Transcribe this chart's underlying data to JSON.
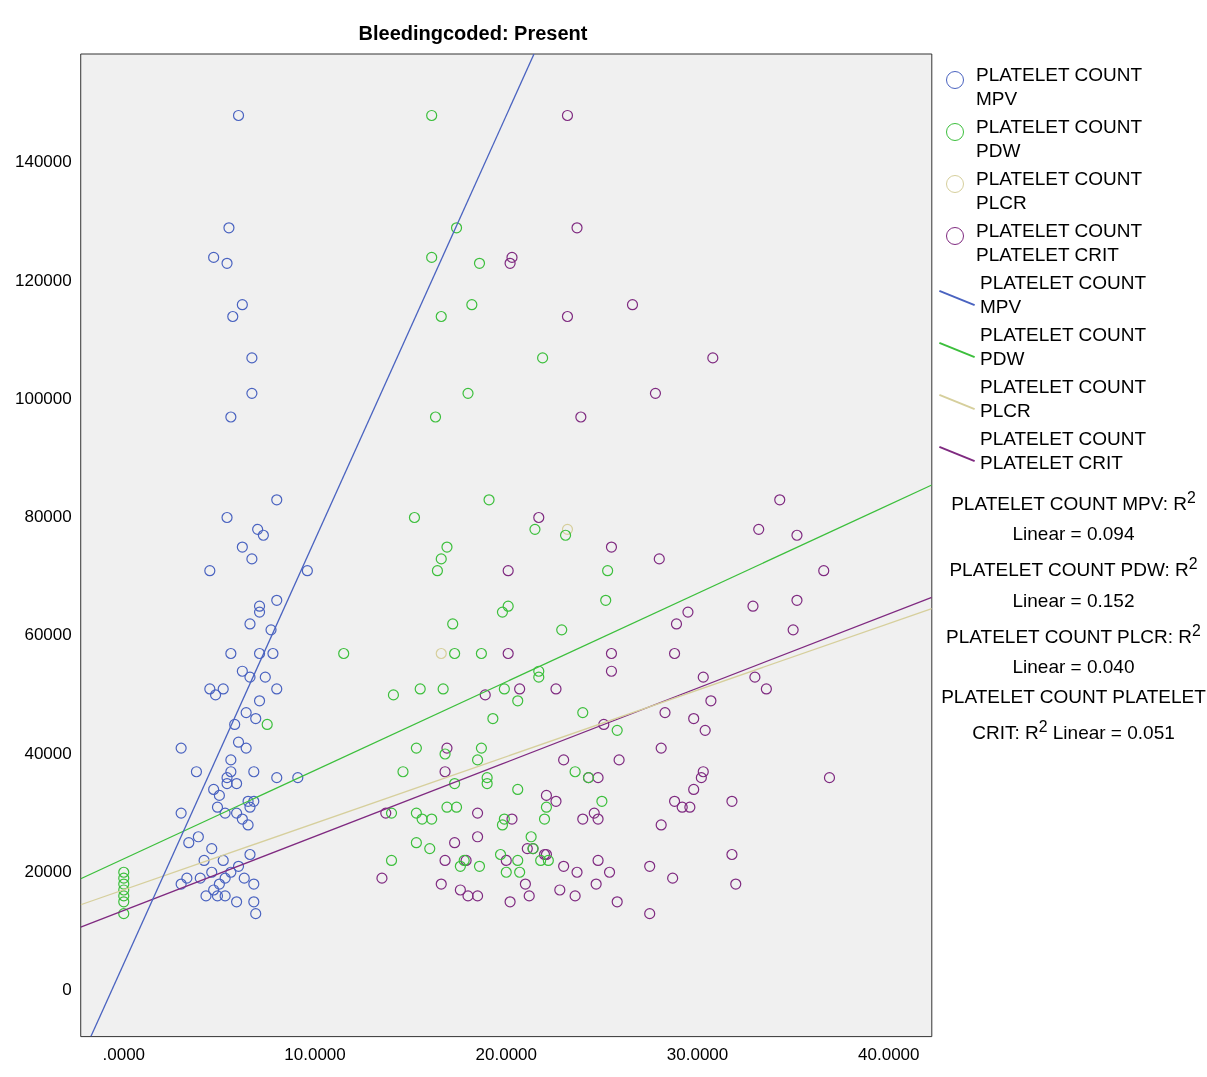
{
  "chart_data": {
    "type": "scatter",
    "title": "Bleedingcoded: Present",
    "xlim": [
      -2.25,
      42.25
    ],
    "xticks": [
      {
        "value": 0,
        "label": ".0000"
      },
      {
        "value": 10,
        "label": "10.0000"
      },
      {
        "value": 20,
        "label": "20.0000"
      },
      {
        "value": 30,
        "label": "30.0000"
      },
      {
        "value": 40,
        "label": "40.0000"
      }
    ],
    "ylim": [
      -7800,
      158400
    ],
    "yticks": [
      0,
      20000,
      40000,
      60000,
      80000,
      100000,
      120000,
      140000
    ],
    "grid": false,
    "legend": "right",
    "marker": "circle",
    "annotations": [
      "PLATELET COUNT MPV: R$^{2}$ Linear = 0.094",
      "PLATELET COUNT PDW: R$^{2}$ Linear = 0.152",
      "PLATELET COUNT PLCR: R$^{2}$ Linear = 0.040",
      "PLATELET COUNT PLATELET CRIT: R$^{2}$ Linear = 0.051"
    ],
    "series": [
      {
        "name": "PLATELET COUNT MPV",
        "color": "#4a63c0",
        "x": [
          6.0,
          5.5,
          4.7,
          5.4,
          6.2,
          5.7,
          6.7,
          6.7,
          5.6,
          8.0,
          5.4,
          7.0,
          7.3,
          6.2,
          6.7,
          4.5,
          9.6,
          8.0,
          7.1,
          7.1,
          6.6,
          7.7,
          5.6,
          7.1,
          7.8,
          6.2,
          6.6,
          7.4,
          4.5,
          5.2,
          4.8,
          8.0,
          7.1,
          6.4,
          6.9,
          5.8,
          6.0,
          6.4,
          3.0,
          3.8,
          5.6,
          5.6,
          5.4,
          8.0,
          9.1,
          6.8,
          5.4,
          5.9,
          4.7,
          5.0,
          6.5,
          6.8,
          6.6,
          5.9,
          5.3,
          4.9,
          3.0,
          6.2,
          6.5,
          3.4,
          3.9,
          4.6,
          6.6,
          4.2,
          5.2,
          6.0,
          3.3,
          3.0,
          4.0,
          4.6,
          4.7,
          5.0,
          5.3,
          5.6,
          6.3,
          6.8,
          4.3,
          4.9,
          5.3,
          5.9,
          6.8,
          6.9
        ],
        "values": [
          148000,
          129000,
          124000,
          123000,
          116000,
          114000,
          107000,
          101000,
          97000,
          83000,
          80000,
          78000,
          77000,
          75000,
          73000,
          71000,
          71000,
          66000,
          65000,
          64000,
          62000,
          61000,
          57000,
          57000,
          57000,
          54000,
          53000,
          53000,
          51000,
          51000,
          50000,
          51000,
          49000,
          47000,
          46000,
          45000,
          42000,
          41000,
          41000,
          37000,
          39000,
          37000,
          36000,
          36000,
          36000,
          37000,
          35000,
          35000,
          34000,
          33000,
          32000,
          32000,
          31000,
          30000,
          30000,
          31000,
          30000,
          29000,
          28000,
          25000,
          26000,
          24000,
          23000,
          22000,
          22000,
          21000,
          19000,
          18000,
          19000,
          20000,
          17000,
          18000,
          19000,
          20000,
          19000,
          18000,
          16000,
          16000,
          16000,
          15000,
          15000,
          13000
        ]
      },
      {
        "name": "PLATELET COUNT PDW",
        "color": "#3cbf3c",
        "x": [
          0,
          0,
          0,
          0,
          0,
          0,
          0,
          7.5,
          16.1,
          17.4,
          16.1,
          18.6,
          18.2,
          16.6,
          21.9,
          18.0,
          16.3,
          19.1,
          15.2,
          16.9,
          16.6,
          16.4,
          25.3,
          21.5,
          23.1,
          25.2,
          19.8,
          20.1,
          17.2,
          22.9,
          11.5,
          17.3,
          18.7,
          14.1,
          15.5,
          16.7,
          19.9,
          20.6,
          21.7,
          21.7,
          24.0,
          19.3,
          25.8,
          15.3,
          18.7,
          16.8,
          18.5,
          14.6,
          23.6,
          24.3,
          19.0,
          19.0,
          17.3,
          20.6,
          15.3,
          14.0,
          15.6,
          16.1,
          16.9,
          22.1,
          17.4,
          19.9,
          19.8,
          22.0,
          25.0,
          15.3,
          16.0,
          20.6,
          21.3,
          21.4,
          17.8,
          17.6,
          18.6,
          19.7,
          20.0,
          20.7,
          14.0,
          21.8,
          22.2
        ],
        "values": [
          20000,
          19000,
          18000,
          17000,
          16000,
          15000,
          13000,
          45000,
          148000,
          129000,
          124000,
          123000,
          116000,
          114000,
          107000,
          101000,
          97000,
          83000,
          80000,
          75000,
          73000,
          71000,
          71000,
          78000,
          77000,
          66000,
          64000,
          65000,
          62000,
          61000,
          57000,
          57000,
          57000,
          50000,
          51000,
          51000,
          51000,
          49000,
          53000,
          54000,
          47000,
          46000,
          44000,
          41000,
          41000,
          40000,
          39000,
          37000,
          37000,
          36000,
          36000,
          35000,
          35000,
          34000,
          30000,
          30000,
          29000,
          29000,
          31000,
          31000,
          31000,
          29000,
          28000,
          29000,
          32000,
          25000,
          24000,
          22000,
          26000,
          24000,
          22000,
          21000,
          21000,
          23000,
          20000,
          20000,
          22000,
          22000,
          22000
        ]
      },
      {
        "name": "PLATELET COUNT PLCR",
        "color": "#d6cf9c",
        "x": [
          16.6,
          23.2
        ],
        "values": [
          57000,
          78000
        ]
      },
      {
        "name": "PLATELET COUNT PLATELET CRIT",
        "color": "#7f2a80",
        "x": [
          23.2,
          23.7,
          20.3,
          20.2,
          23.2,
          26.6,
          30.8,
          27.8,
          23.9,
          34.3,
          21.7,
          33.2,
          35.2,
          25.5,
          28.0,
          20.1,
          36.6,
          29.5,
          32.9,
          35.2,
          28.9,
          35.0,
          20.1,
          25.5,
          28.8,
          25.5,
          30.3,
          33.0,
          18.9,
          20.7,
          22.6,
          33.6,
          30.7,
          25.1,
          28.3,
          29.8,
          30.4,
          16.9,
          28.1,
          23.0,
          25.9,
          16.8,
          30.3,
          30.2,
          36.9,
          24.3,
          24.8,
          13.7,
          18.5,
          20.3,
          22.1,
          22.6,
          24.8,
          24.6,
          24.0,
          29.2,
          28.8,
          29.6,
          31.8,
          28.1,
          17.3,
          18.5,
          21.1,
          21.4,
          22.1,
          25.4,
          23.0,
          23.7,
          16.8,
          20.0,
          17.9,
          27.5,
          29.8,
          31.8,
          13.5,
          16.6,
          17.6,
          18.0,
          18.5,
          20.2,
          21.2,
          21.0,
          22.8,
          23.6,
          24.7,
          24.8,
          25.8,
          28.7,
          27.5,
          32.0,
          22.0
        ],
        "values": [
          148000,
          129000,
          124000,
          123000,
          114000,
          116000,
          107000,
          101000,
          97000,
          83000,
          80000,
          78000,
          77000,
          75000,
          73000,
          71000,
          71000,
          64000,
          65000,
          66000,
          62000,
          61000,
          57000,
          57000,
          57000,
          54000,
          53000,
          53000,
          50000,
          51000,
          51000,
          51000,
          49000,
          45000,
          47000,
          46000,
          44000,
          41000,
          41000,
          39000,
          39000,
          37000,
          37000,
          36000,
          36000,
          36000,
          36000,
          30000,
          30000,
          29000,
          33000,
          32000,
          29000,
          30000,
          29000,
          31000,
          32000,
          31000,
          32000,
          28000,
          25000,
          26000,
          24000,
          24000,
          23000,
          20000,
          21000,
          20000,
          22000,
          22000,
          22000,
          21000,
          34000,
          23000,
          19000,
          18000,
          17000,
          16000,
          16000,
          15000,
          16000,
          18000,
          17000,
          16000,
          18000,
          22000,
          15000,
          19000,
          13000,
          18000,
          23000
        ]
      },
      {
        "name": "PLATELET COUNT MPV",
        "type": "line",
        "marker": "none",
        "line_style": "solid",
        "color": "#4a63c0",
        "x": [
          -1.72,
          21.45
        ],
        "values": [
          -7800,
          158400
        ]
      },
      {
        "name": "PLATELET COUNT PDW",
        "type": "line",
        "marker": "none",
        "line_style": "solid",
        "color": "#3cbf3c",
        "x": [
          -2.25,
          42.25
        ],
        "values": [
          18900,
          85500
        ]
      },
      {
        "name": "PLATELET COUNT PLCR",
        "type": "line",
        "marker": "none",
        "line_style": "solid",
        "color": "#d6cf9c",
        "x": [
          -2.25,
          42.25
        ],
        "values": [
          14500,
          64600
        ]
      },
      {
        "name": "PLATELET COUNT PLATELET CRIT",
        "type": "line",
        "marker": "none",
        "line_style": "solid",
        "color": "#7f2a80",
        "x": [
          -2.25,
          42.25
        ],
        "values": [
          10700,
          66500
        ]
      }
    ]
  }
}
